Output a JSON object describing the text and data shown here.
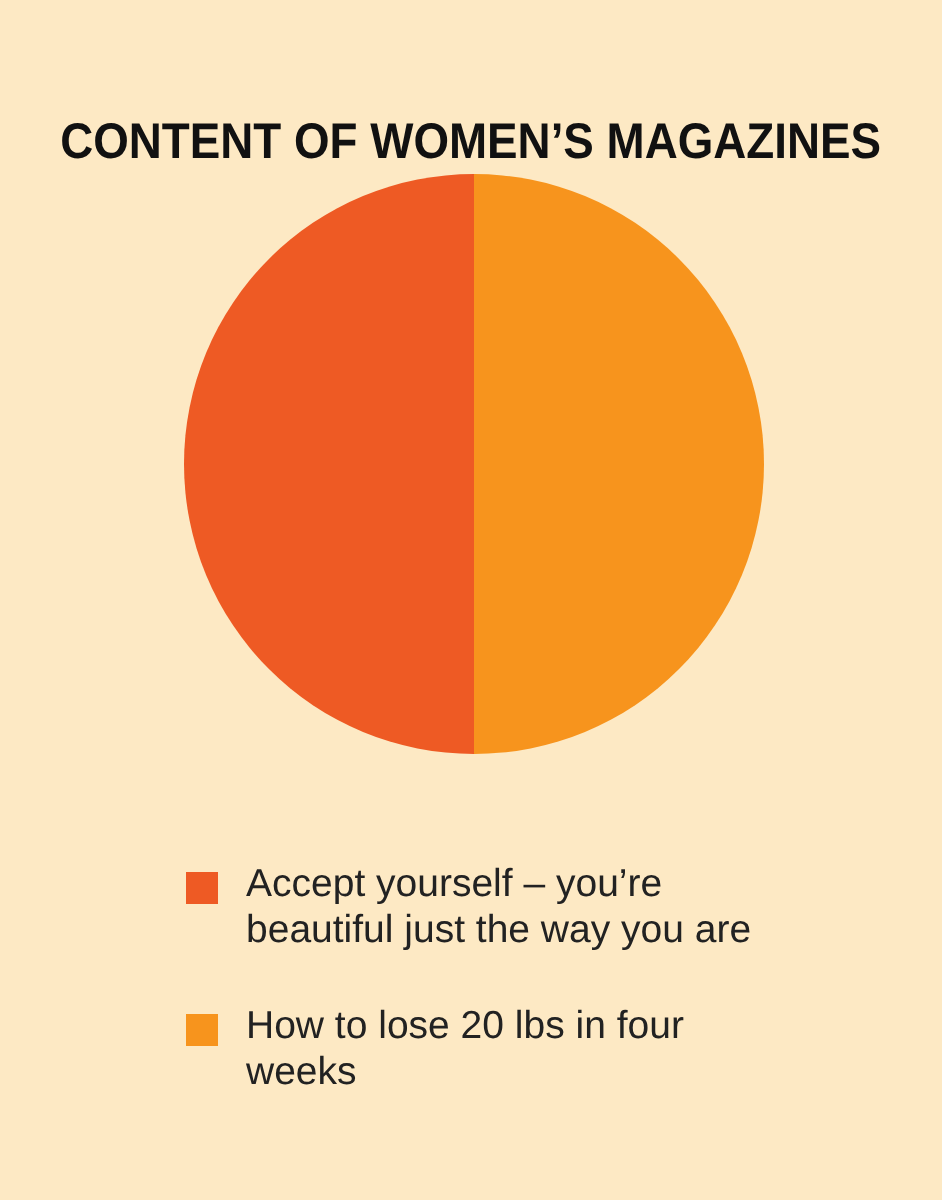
{
  "chart_data": {
    "type": "pie",
    "title": "CONTENT OF WOMEN’S MAGAZINES",
    "categories": [
      "Accept yourself – you’re beautiful just the way you are",
      "How to lose 20 lbs in four weeks"
    ],
    "values": [
      50,
      50
    ],
    "colors": [
      "#ee5a24",
      "#f7941d"
    ],
    "legend": "bottom"
  }
}
